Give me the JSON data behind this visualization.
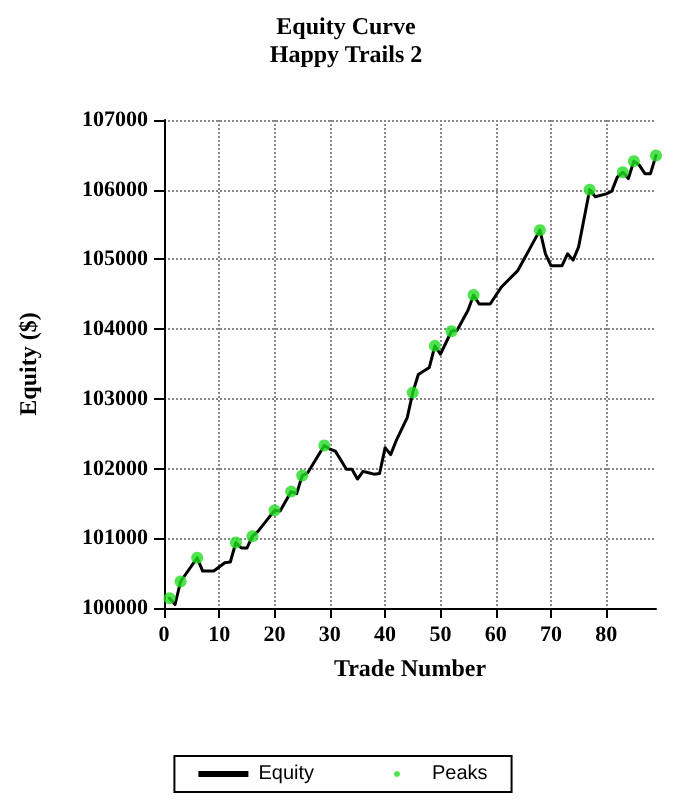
{
  "chart_data": {
    "type": "line",
    "title": "Equity Curve",
    "subtitle": "Happy Trails 2",
    "xlabel": "Trade Number",
    "ylabel": "Equity ($)",
    "xlim": [
      0,
      89
    ],
    "xticks": [
      0,
      10,
      20,
      30,
      40,
      50,
      60,
      70,
      80
    ],
    "ylim": [
      100000,
      107000
    ],
    "yticks": [
      100000,
      101000,
      102000,
      103000,
      104000,
      105000,
      106000,
      107000
    ],
    "grid": true,
    "legend": "bottom",
    "series": [
      {
        "name": "Equity",
        "color": "#000000",
        "marker": "none",
        "x": [
          1,
          2,
          3,
          6,
          7,
          9,
          11,
          12,
          13,
          14,
          15,
          16,
          17,
          20,
          21,
          23,
          24,
          25,
          26,
          29,
          30,
          31,
          33,
          34,
          35,
          36,
          37,
          38,
          39,
          40,
          41,
          42,
          44,
          45,
          46,
          48,
          49,
          50,
          52,
          53,
          55,
          56,
          57,
          59,
          61,
          64,
          66,
          68,
          69,
          70,
          72,
          73,
          74,
          75,
          77,
          78,
          80,
          81,
          82,
          83,
          84,
          85,
          86,
          87,
          88,
          89
        ],
        "values": [
          100140,
          100050,
          100380,
          100720,
          100530,
          100530,
          100650,
          100660,
          100940,
          100860,
          100860,
          101030,
          101100,
          101400,
          101390,
          101670,
          101640,
          101900,
          101940,
          102330,
          102280,
          102250,
          101990,
          101990,
          101850,
          101960,
          101940,
          101920,
          101930,
          102300,
          102200,
          102400,
          102730,
          103090,
          103350,
          103450,
          103760,
          103640,
          103970,
          103980,
          104270,
          104490,
          104360,
          104360,
          104600,
          104840,
          105130,
          105420,
          105080,
          104910,
          104910,
          105080,
          104990,
          105180,
          106000,
          105900,
          105940,
          105980,
          106180,
          106250,
          106160,
          106410,
          106350,
          106230,
          106230,
          106490
        ]
      },
      {
        "name": "Peaks",
        "type": "scatter",
        "color": "#22dd22",
        "marker": "circle",
        "x": [
          1,
          3,
          6,
          13,
          16,
          20,
          23,
          25,
          29,
          45,
          49,
          52,
          56,
          68,
          77,
          83,
          85,
          89
        ],
        "values": [
          100140,
          100380,
          100720,
          100940,
          101030,
          101400,
          101670,
          101900,
          102330,
          103090,
          103760,
          103970,
          104490,
          105420,
          106000,
          106250,
          106410,
          106490
        ]
      }
    ]
  }
}
